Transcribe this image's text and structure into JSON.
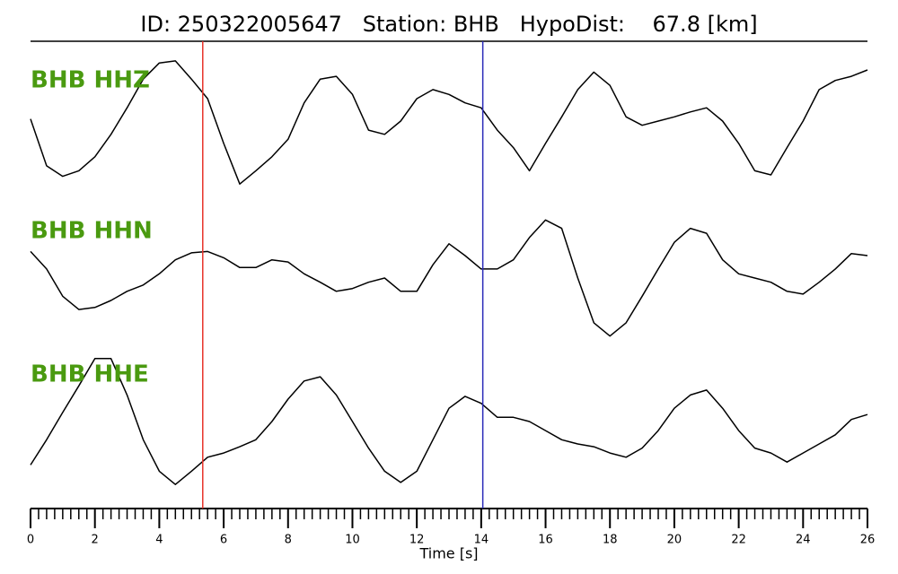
{
  "chart_data": {
    "type": "line",
    "title": "ID: 250322005647   Station: BHB   HypoDist:    67.8 [km]",
    "x_label": "Time [s]",
    "xlim": [
      0,
      26
    ],
    "xticks": [
      0,
      2,
      4,
      6,
      8,
      10,
      12,
      14,
      16,
      18,
      20,
      22,
      24,
      26
    ],
    "xminorticks": [
      0,
      0.25,
      0.5,
      0.75,
      1,
      1.25,
      1.5,
      1.75,
      2,
      2.25,
      2.5,
      2.75,
      3,
      3.25,
      3.5,
      3.75,
      4,
      4.25,
      4.5,
      4.75,
      5,
      5.25,
      5.5,
      5.75,
      6,
      6.25,
      6.5,
      6.75,
      7,
      7.25,
      7.5,
      7.75,
      8,
      8.25,
      8.5,
      8.75,
      9,
      9.25,
      9.5,
      9.75,
      10,
      10.25,
      10.5,
      10.75,
      11,
      11.25,
      11.5,
      11.75,
      12,
      12.25,
      12.5,
      12.75,
      13,
      13.25,
      13.5,
      13.75,
      14,
      14.25,
      14.5,
      14.75,
      15,
      15.25,
      15.5,
      15.75,
      16,
      16.25,
      16.5,
      16.75,
      17,
      17.25,
      17.5,
      17.75,
      18,
      18.25,
      18.5,
      18.75,
      19,
      19.25,
      19.5,
      19.75,
      20,
      20.25,
      20.5,
      20.75,
      21,
      21.25,
      21.5,
      21.75,
      22,
      22.25,
      22.5,
      22.75,
      23,
      23.25,
      23.5,
      23.75,
      24,
      24.25,
      24.5,
      24.75,
      25,
      25.25,
      25.5,
      25.75,
      26
    ],
    "ylim": [
      -1,
      1
    ],
    "label_color": "#4a9a10",
    "line_color": "#000000",
    "x": [
      0,
      0.5,
      1,
      1.5,
      2,
      2.5,
      3,
      3.5,
      4,
      4.5,
      5,
      5.5,
      6,
      6.5,
      7,
      7.5,
      8,
      8.5,
      9,
      9.5,
      10,
      10.5,
      11,
      11.5,
      12,
      12.5,
      13,
      13.5,
      14,
      14.5,
      15,
      15.5,
      16,
      16.5,
      17,
      17.5,
      18,
      18.5,
      19,
      19.5,
      20,
      20.5,
      21,
      21.5,
      22,
      22.5,
      23,
      23.5,
      24,
      24.5,
      25,
      25.5,
      26
    ],
    "series": [
      {
        "name": "BHB HHZ",
        "values": [
          0.12,
          -0.55,
          -0.7,
          -0.62,
          -0.42,
          -0.1,
          0.28,
          0.69,
          0.92,
          0.95,
          0.69,
          0.41,
          -0.23,
          -0.81,
          -0.62,
          -0.42,
          -0.17,
          0.35,
          0.69,
          0.73,
          0.47,
          -0.04,
          -0.1,
          0.09,
          0.41,
          0.54,
          0.47,
          0.35,
          0.28,
          -0.04,
          -0.29,
          -0.62,
          -0.23,
          0.15,
          0.54,
          0.79,
          0.6,
          0.15,
          0.03,
          0.09,
          0.15,
          0.22,
          0.28,
          0.09,
          -0.23,
          -0.62,
          -0.68,
          -0.29,
          0.09,
          0.54,
          0.67,
          0.73,
          0.82
        ]
      },
      {
        "name": "BHB HHN",
        "values": [
          0.38,
          0.13,
          -0.26,
          -0.45,
          -0.42,
          -0.32,
          -0.19,
          -0.1,
          0.06,
          0.26,
          0.36,
          0.38,
          0.29,
          0.15,
          0.15,
          0.26,
          0.23,
          0.06,
          -0.06,
          -0.19,
          -0.15,
          -0.06,
          0,
          -0.19,
          -0.19,
          0.19,
          0.49,
          0.32,
          0.13,
          0.13,
          0.26,
          0.58,
          0.83,
          0.71,
          0,
          -0.64,
          -0.83,
          -0.64,
          -0.26,
          0.13,
          0.51,
          0.71,
          0.64,
          0.26,
          0.06,
          0,
          -0.06,
          -0.19,
          -0.23,
          -0.06,
          0.13,
          0.35,
          0.32
        ]
      },
      {
        "name": "BHB HHE",
        "values": [
          -0.62,
          -0.26,
          0.13,
          0.51,
          0.9,
          0.9,
          0.38,
          -0.26,
          -0.71,
          -0.9,
          -0.71,
          -0.51,
          -0.45,
          -0.36,
          -0.26,
          0,
          0.32,
          0.58,
          0.64,
          0.38,
          0,
          -0.38,
          -0.71,
          -0.87,
          -0.71,
          -0.26,
          0.19,
          0.36,
          0.26,
          0.06,
          0.06,
          0,
          -0.13,
          -0.26,
          -0.32,
          -0.36,
          -0.45,
          -0.51,
          -0.38,
          -0.13,
          0.19,
          0.38,
          0.45,
          0.19,
          -0.13,
          -0.38,
          -0.45,
          -0.58,
          -0.45,
          -0.32,
          -0.19,
          0.03,
          0.1
        ]
      }
    ],
    "markers": [
      {
        "x": 5.35,
        "color": "#e8332a"
      },
      {
        "x": 14.05,
        "color": "#2a2ab8"
      }
    ]
  }
}
